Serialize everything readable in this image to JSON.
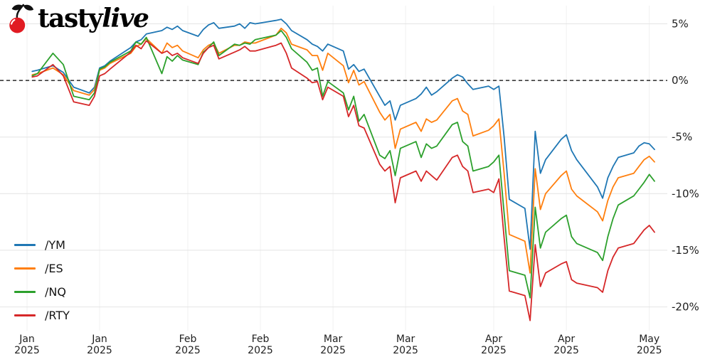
{
  "logo": {
    "brand_first": "tasty",
    "brand_second": "live"
  },
  "chart_data": {
    "type": "line",
    "title": "",
    "xlabel": "",
    "ylabel": "",
    "grid": true,
    "legend_position": "lower left",
    "zero_line": "dashed",
    "ylim": [
      -22.1,
      6.6
    ],
    "x_range": [
      0,
      121
    ],
    "y_ticks": [
      {
        "value": 5,
        "label": "5%"
      },
      {
        "value": 0,
        "label": "0%"
      },
      {
        "value": -5,
        "label": "-5%"
      },
      {
        "value": -10,
        "label": "-10%"
      },
      {
        "value": -15,
        "label": "-15%"
      },
      {
        "value": -20,
        "label": "-20%"
      }
    ],
    "x_ticks": [
      {
        "day": 0,
        "month": "Jan",
        "year": "2025"
      },
      {
        "day": 14,
        "month": "Jan",
        "year": "2025"
      },
      {
        "day": 31,
        "month": "Feb",
        "year": "2025"
      },
      {
        "day": 45,
        "month": "Feb",
        "year": "2025"
      },
      {
        "day": 59,
        "month": "Mar",
        "year": "2025"
      },
      {
        "day": 73,
        "month": "Mar",
        "year": "2025"
      },
      {
        "day": 90,
        "month": "Apr",
        "year": "2025"
      },
      {
        "day": 104,
        "month": "Apr",
        "year": "2025"
      },
      {
        "day": 120,
        "month": "May",
        "year": "2025"
      }
    ],
    "dates": [
      "Jan 2",
      "Jan 3",
      "Jan 6",
      "Jan 7",
      "Jan 8",
      "Jan 10",
      "Jan 13",
      "Jan 14",
      "Jan 15",
      "Jan 16",
      "Jan 17",
      "Jan 21",
      "Jan 22",
      "Jan 23",
      "Jan 24",
      "Jan 27",
      "Jan 28",
      "Jan 29",
      "Jan 30",
      "Jan 31",
      "Feb 3",
      "Feb 4",
      "Feb 5",
      "Feb 6",
      "Feb 7",
      "Feb 10",
      "Feb 11",
      "Feb 12",
      "Feb 13",
      "Feb 14",
      "Feb 18",
      "Feb 19",
      "Feb 20",
      "Feb 21",
      "Feb 24",
      "Feb 25",
      "Feb 26",
      "Feb 27",
      "Feb 28",
      "Mar 3",
      "Mar 4",
      "Mar 5",
      "Mar 6",
      "Mar 7",
      "Mar 10",
      "Mar 11",
      "Mar 12",
      "Mar 13",
      "Mar 14",
      "Mar 17",
      "Mar 18",
      "Mar 19",
      "Mar 20",
      "Mar 21",
      "Mar 24",
      "Mar 25",
      "Mar 26",
      "Mar 27",
      "Mar 28",
      "Mar 31",
      "Apr 1",
      "Apr 2",
      "Apr 3",
      "Apr 4",
      "Apr 7",
      "Apr 8",
      "Apr 9",
      "Apr 10",
      "Apr 11",
      "Apr 14",
      "Apr 15",
      "Apr 16",
      "Apr 17",
      "Apr 21",
      "Apr 22",
      "Apr 23",
      "Apr 24",
      "Apr 25",
      "Apr 28",
      "Apr 29",
      "Apr 30",
      "May 1",
      "May 2"
    ],
    "x_days": [
      1,
      2,
      5,
      6,
      7,
      9,
      12,
      13,
      14,
      15,
      16,
      20,
      21,
      22,
      23,
      26,
      27,
      28,
      29,
      30,
      33,
      34,
      35,
      36,
      37,
      40,
      41,
      42,
      43,
      44,
      48,
      49,
      50,
      51,
      54,
      55,
      56,
      57,
      58,
      61,
      62,
      63,
      64,
      65,
      68,
      69,
      70,
      71,
      72,
      75,
      76,
      77,
      78,
      79,
      82,
      83,
      84,
      85,
      86,
      89,
      90,
      91,
      92,
      93,
      96,
      97,
      98,
      99,
      100,
      103,
      104,
      105,
      106,
      110,
      111,
      112,
      113,
      114,
      117,
      118,
      119,
      120,
      121
    ],
    "series": [
      {
        "name": "/YM",
        "color": "#1f77b4",
        "values": [
          0.8,
          0.9,
          1.3,
          1.0,
          0.7,
          -0.6,
          -1.1,
          -0.6,
          1.1,
          1.3,
          1.7,
          2.9,
          3.4,
          3.6,
          4.1,
          4.4,
          4.7,
          4.5,
          4.8,
          4.4,
          3.9,
          4.5,
          4.9,
          5.1,
          4.6,
          4.8,
          5.0,
          4.6,
          5.1,
          5.0,
          5.3,
          5.4,
          5.0,
          4.4,
          3.6,
          3.2,
          3.0,
          2.6,
          3.2,
          2.6,
          1.0,
          1.4,
          0.8,
          1.0,
          -1.4,
          -2.2,
          -1.8,
          -3.5,
          -2.2,
          -1.6,
          -1.2,
          -0.6,
          -1.3,
          -1.0,
          0.2,
          0.5,
          0.3,
          -0.3,
          -0.8,
          -0.5,
          -0.8,
          -0.5,
          -5.0,
          -10.5,
          -11.3,
          -14.9,
          -4.5,
          -8.2,
          -7.0,
          -5.2,
          -4.8,
          -6.2,
          -7.0,
          -9.4,
          -10.4,
          -8.6,
          -7.6,
          -6.8,
          -6.4,
          -5.8,
          -5.5,
          -5.6,
          -6.1
        ]
      },
      {
        "name": "/ES",
        "color": "#ff7f0e",
        "values": [
          0.5,
          0.6,
          1.1,
          0.8,
          0.5,
          -0.9,
          -1.3,
          -0.8,
          0.9,
          1.1,
          1.5,
          2.4,
          3.0,
          3.2,
          3.7,
          2.4,
          3.3,
          2.9,
          3.1,
          2.6,
          2.0,
          2.7,
          3.1,
          3.3,
          2.4,
          3.1,
          3.1,
          3.4,
          3.3,
          3.3,
          4.0,
          4.6,
          4.2,
          3.2,
          2.7,
          2.2,
          2.2,
          0.9,
          2.4,
          1.3,
          -0.2,
          0.9,
          -0.4,
          -0.1,
          -2.8,
          -3.5,
          -3.0,
          -6.0,
          -4.3,
          -3.7,
          -4.5,
          -3.4,
          -3.7,
          -3.5,
          -1.8,
          -1.6,
          -2.7,
          -3.0,
          -4.9,
          -4.4,
          -4.0,
          -3.4,
          -8.2,
          -13.6,
          -14.2,
          -17.0,
          -7.8,
          -11.4,
          -10.0,
          -8.4,
          -8.0,
          -9.6,
          -10.2,
          -11.6,
          -12.4,
          -10.6,
          -9.4,
          -8.6,
          -8.2,
          -7.6,
          -7.0,
          -6.7,
          -7.2
        ]
      },
      {
        "name": "/NQ",
        "color": "#2ca02c",
        "values": [
          0.4,
          0.6,
          2.4,
          1.9,
          1.4,
          -1.4,
          -1.7,
          -1.1,
          1.0,
          1.2,
          1.6,
          2.6,
          3.4,
          3.2,
          3.8,
          0.6,
          2.1,
          1.7,
          2.2,
          1.8,
          1.4,
          2.5,
          2.9,
          3.4,
          2.2,
          3.2,
          3.1,
          3.3,
          3.2,
          3.6,
          4.0,
          4.4,
          3.8,
          2.8,
          1.6,
          0.9,
          1.1,
          -1.4,
          -0.1,
          -1.1,
          -2.6,
          -1.4,
          -3.6,
          -3.0,
          -6.6,
          -6.9,
          -6.2,
          -8.4,
          -6.0,
          -5.4,
          -6.8,
          -5.6,
          -6.0,
          -5.8,
          -3.9,
          -3.7,
          -5.4,
          -5.8,
          -8.0,
          -7.6,
          -7.2,
          -6.6,
          -11.7,
          -16.8,
          -17.2,
          -19.2,
          -11.2,
          -14.8,
          -13.4,
          -12.2,
          -11.9,
          -13.8,
          -14.4,
          -15.2,
          -15.9,
          -13.8,
          -12.2,
          -11.0,
          -10.2,
          -9.6,
          -9.0,
          -8.3,
          -8.9
        ]
      },
      {
        "name": "/RTY",
        "color": "#d62728",
        "values": [
          0.3,
          0.4,
          1.4,
          0.9,
          0.4,
          -1.9,
          -2.2,
          -1.4,
          0.4,
          0.6,
          1.0,
          2.5,
          3.1,
          2.8,
          3.5,
          2.4,
          2.6,
          2.2,
          2.4,
          2.0,
          1.5,
          2.4,
          2.9,
          3.1,
          1.9,
          2.5,
          2.7,
          3.0,
          2.6,
          2.6,
          3.1,
          3.3,
          2.4,
          1.1,
          0.2,
          -0.2,
          -0.1,
          -1.7,
          -0.6,
          -1.4,
          -3.2,
          -2.2,
          -4.0,
          -4.2,
          -7.4,
          -8.0,
          -7.6,
          -10.8,
          -8.6,
          -8.0,
          -8.9,
          -8.0,
          -8.4,
          -8.8,
          -6.8,
          -6.6,
          -7.6,
          -8.0,
          -9.9,
          -9.6,
          -9.9,
          -8.7,
          -13.9,
          -18.6,
          -19.0,
          -21.2,
          -14.5,
          -18.2,
          -17.0,
          -16.2,
          -16.0,
          -17.6,
          -17.9,
          -18.3,
          -18.7,
          -16.8,
          -15.6,
          -14.8,
          -14.4,
          -13.8,
          -13.2,
          -12.8,
          -13.4
        ]
      }
    ]
  }
}
